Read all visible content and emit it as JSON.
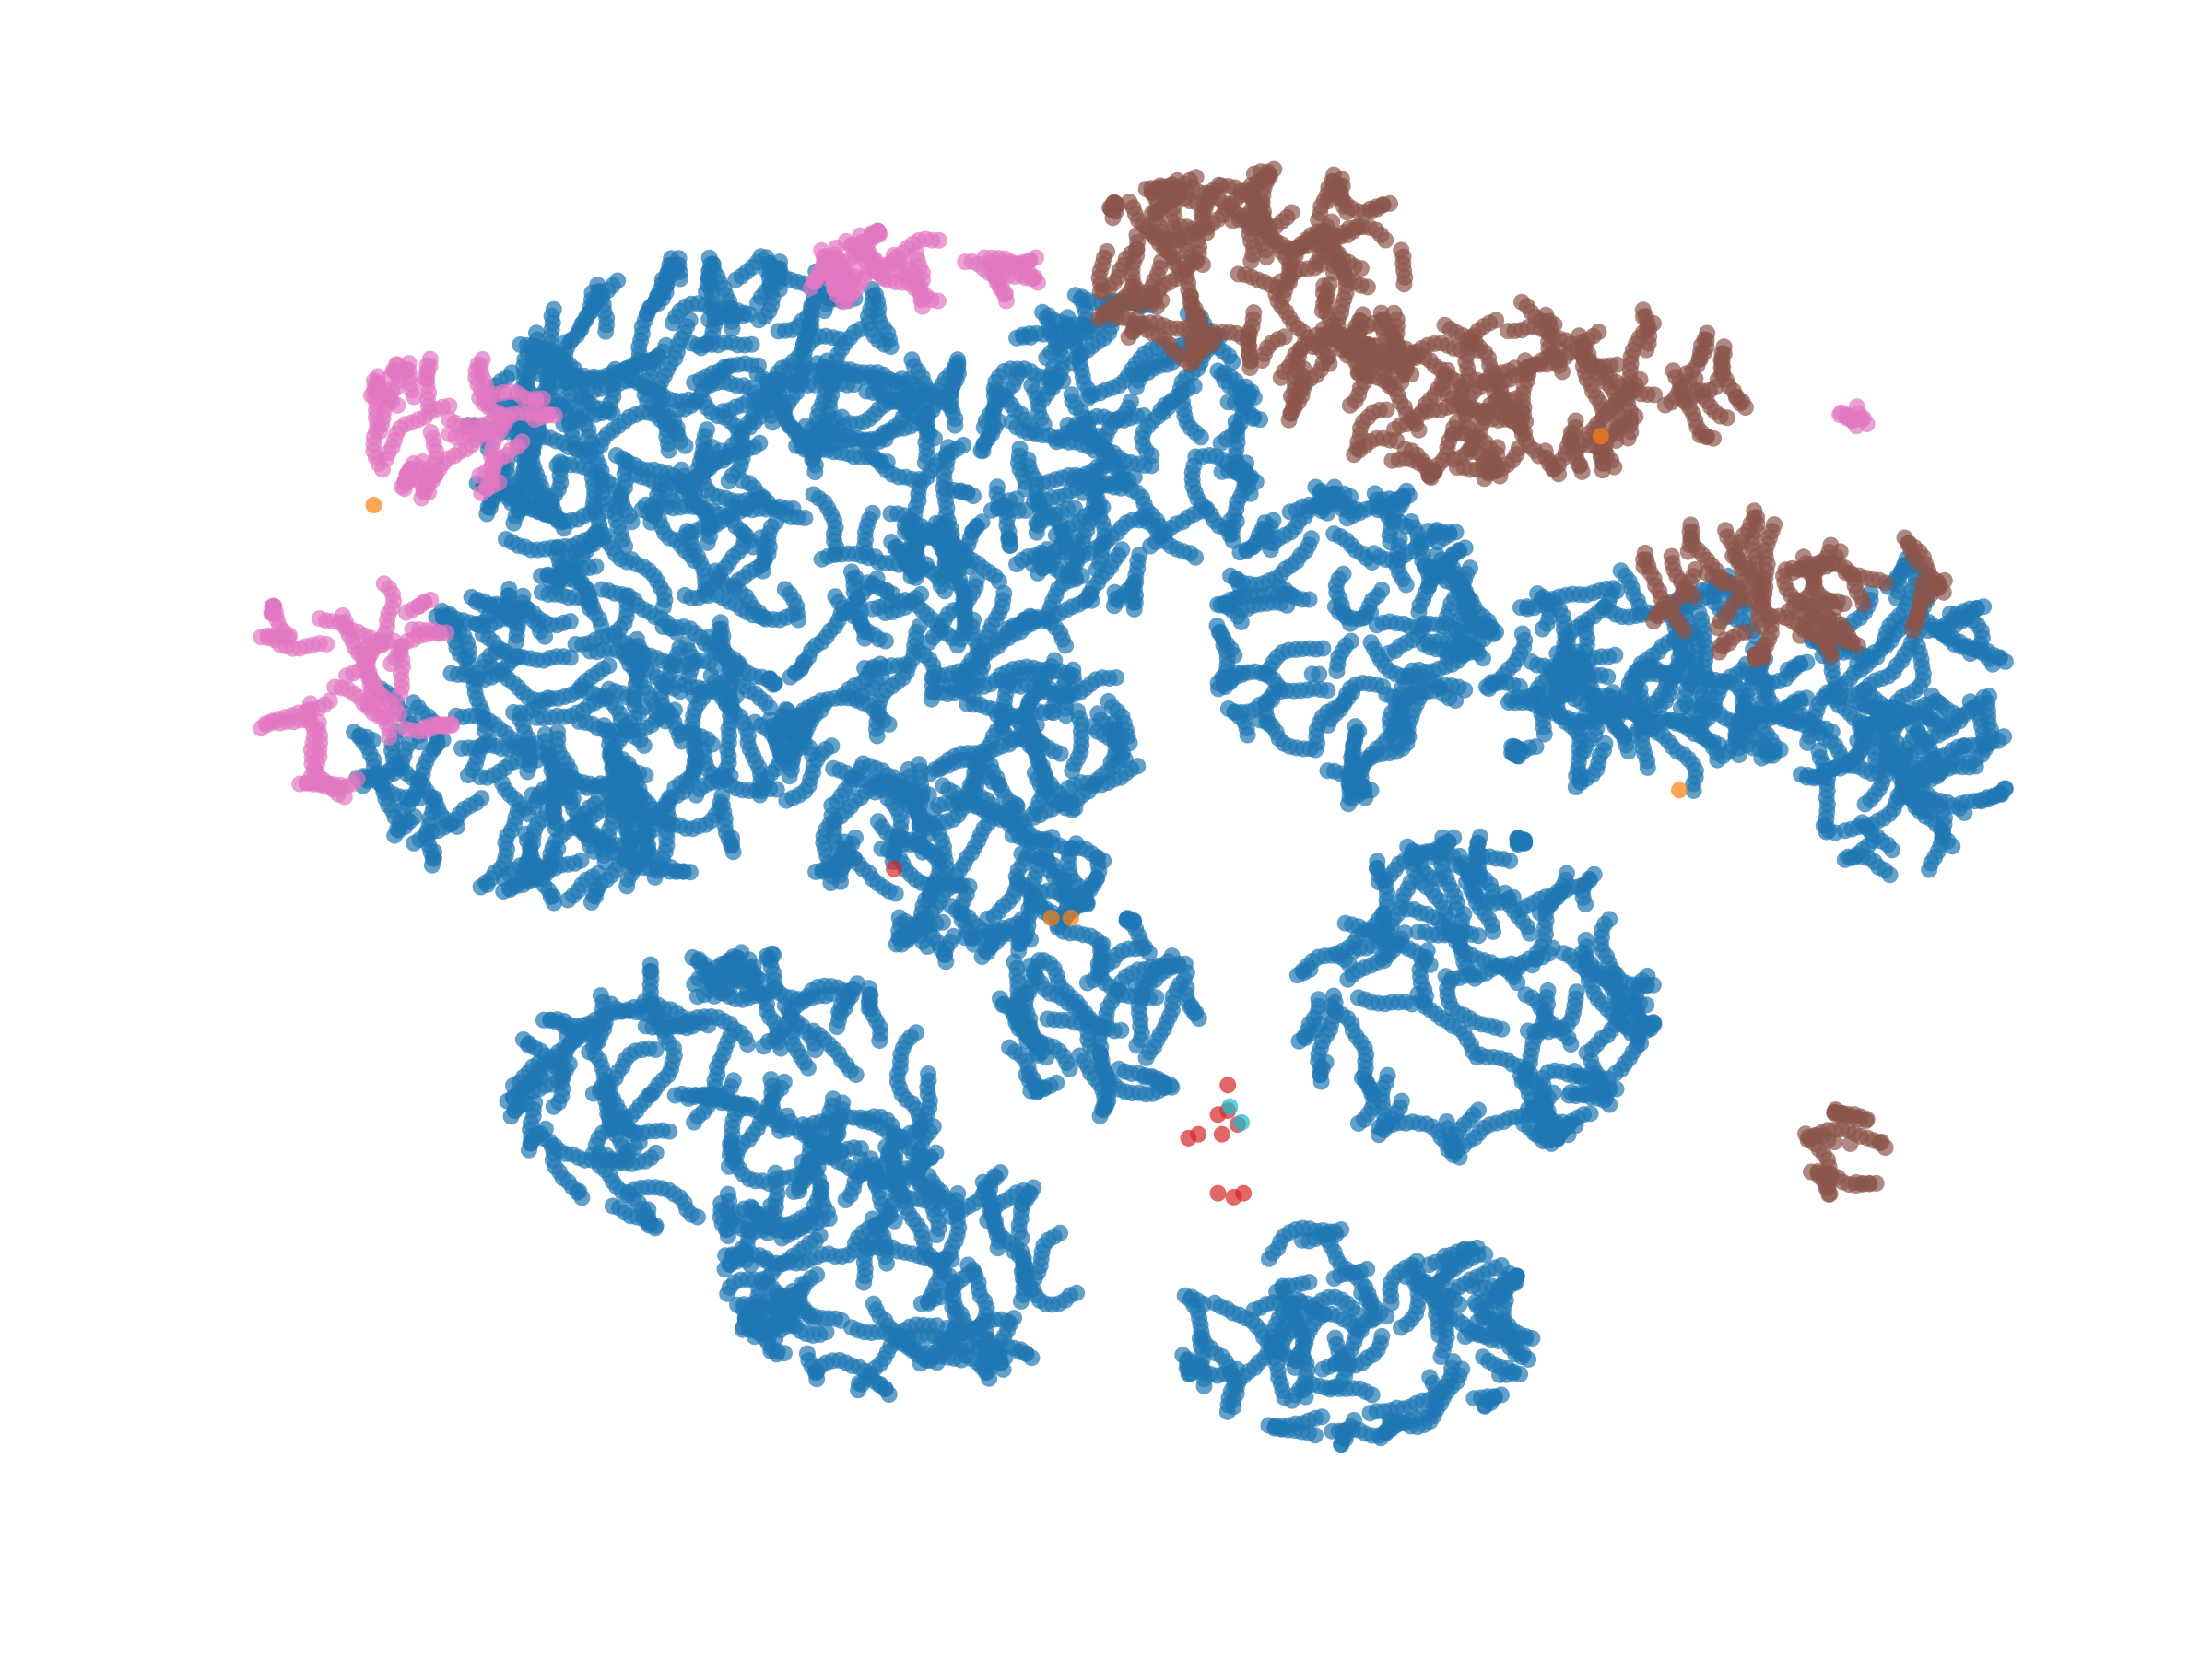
{
  "chart_data": {
    "type": "scatter",
    "title": "",
    "xlabel": "",
    "ylabel": "",
    "axes_visible": false,
    "grid": false,
    "legend": "none",
    "xlim": [
      0,
      100
    ],
    "ylim": [
      0,
      75
    ],
    "point_alpha": 0.7,
    "series": [
      {
        "color": "#1f77b4",
        "clusters": [
          {
            "cx": 30,
            "cy": 57,
            "rx": 13,
            "ry": 9.5,
            "n": 1500
          },
          {
            "cx": 22,
            "cy": 42,
            "rx": 11,
            "ry": 8,
            "n": 1100
          },
          {
            "cx": 42,
            "cy": 42,
            "rx": 9,
            "ry": 11,
            "n": 1200
          },
          {
            "cx": 50,
            "cy": 57,
            "rx": 7,
            "ry": 8,
            "n": 650
          },
          {
            "cx": 62,
            "cy": 47,
            "rx": 7,
            "ry": 8,
            "n": 600
          },
          {
            "cx": 77,
            "cy": 45,
            "rx": 8,
            "ry": 6,
            "n": 650
          },
          {
            "cx": 90,
            "cy": 43,
            "rx": 5.5,
            "ry": 8,
            "n": 550
          },
          {
            "cx": 68,
            "cy": 29,
            "rx": 9,
            "ry": 8,
            "n": 750
          },
          {
            "cx": 30,
            "cy": 24,
            "rx": 11,
            "ry": 7,
            "n": 800
          },
          {
            "cx": 39,
            "cy": 15,
            "rx": 9,
            "ry": 6,
            "n": 650
          },
          {
            "cx": 62,
            "cy": 12,
            "rx": 9,
            "ry": 5.5,
            "n": 550
          },
          {
            "cx": 49,
            "cy": 28,
            "rx": 5,
            "ry": 5,
            "n": 300
          }
        ]
      },
      {
        "color": "#8c564b",
        "clusters": [
          {
            "cx": 57,
            "cy": 66,
            "rx": 9,
            "ry": 5,
            "n": 550
          },
          {
            "cx": 70,
            "cy": 60,
            "rx": 12,
            "ry": 4.5,
            "n": 650
          },
          {
            "cx": 84,
            "cy": 50,
            "rx": 8,
            "ry": 3.5,
            "n": 300
          },
          {
            "cx": 87,
            "cy": 21,
            "rx": 2,
            "ry": 2,
            "n": 70
          }
        ]
      },
      {
        "color": "#e377c2",
        "clusters": [
          {
            "cx": 40,
            "cy": 66,
            "rx": 6,
            "ry": 1.8,
            "n": 180
          },
          {
            "cx": 16,
            "cy": 58,
            "rx": 5,
            "ry": 3.5,
            "n": 200
          },
          {
            "cx": 11,
            "cy": 45,
            "rx": 5,
            "ry": 6,
            "n": 220
          },
          {
            "cx": 87.5,
            "cy": 58.6,
            "rx": 0.6,
            "ry": 0.5,
            "n": 15
          }
        ]
      },
      {
        "color": "#d62728",
        "points": [
          [
            55,
            23
          ],
          [
            55.5,
            23.2
          ],
          [
            56,
            22.5
          ],
          [
            55.2,
            22
          ],
          [
            54,
            22
          ],
          [
            53.5,
            21.8
          ],
          [
            55,
            19
          ],
          [
            55.8,
            18.8
          ],
          [
            56.3,
            19
          ],
          [
            55.5,
            24.5
          ],
          [
            38.5,
            35.5
          ]
        ]
      },
      {
        "color": "#ff7f0e",
        "points": [
          [
            12,
            54
          ],
          [
            46.5,
            33
          ],
          [
            47.5,
            33
          ],
          [
            78.5,
            39.5
          ],
          [
            74.5,
            57.5
          ]
        ]
      },
      {
        "color": "#17becf",
        "points": [
          [
            56.2,
            22.6
          ],
          [
            55.6,
            23.4
          ]
        ]
      }
    ]
  }
}
